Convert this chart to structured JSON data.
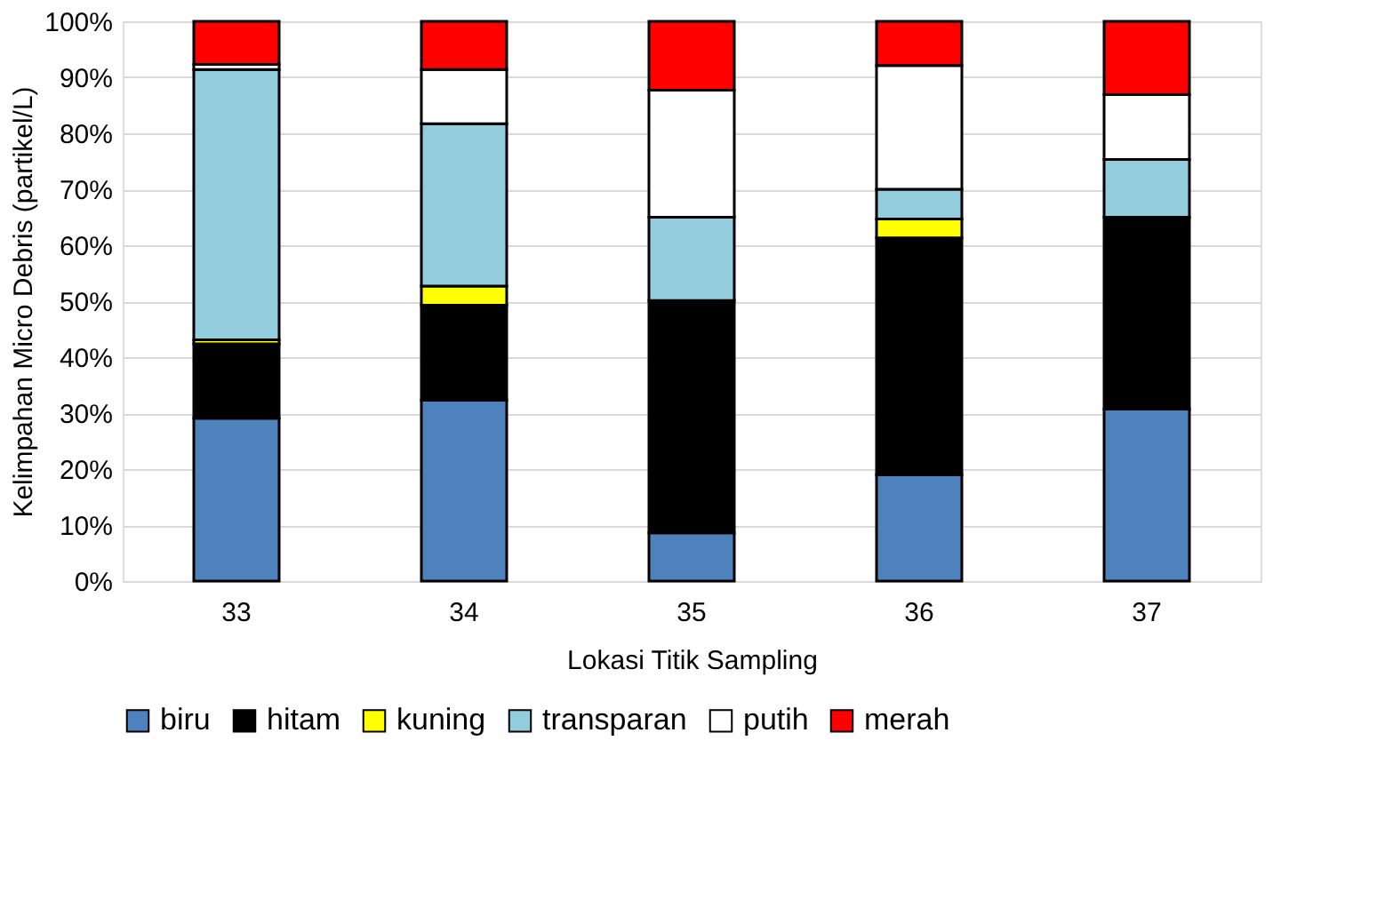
{
  "chart_data": {
    "type": "bar",
    "stacked": true,
    "xlabel": "Lokasi Titik Sampling",
    "ylabel": "Kelimpahan Micro Debris (partikel/L)",
    "categories": [
      "33",
      "34",
      "35",
      "36",
      "37"
    ],
    "series": [
      {
        "name": "biru",
        "color": "#4f81bd",
        "values": [
          29.1,
          32.3,
          8.6,
          19.0,
          30.7
        ]
      },
      {
        "name": "hitam",
        "color": "#000000",
        "values": [
          13.3,
          17.0,
          41.5,
          42.3,
          34.3
        ]
      },
      {
        "name": "kuning",
        "color": "#ffff00",
        "values": [
          0.7,
          3.4,
          0,
          3.4,
          0
        ]
      },
      {
        "name": "transparan",
        "color": "#93cddd",
        "values": [
          48.3,
          29.0,
          14.9,
          5.3,
          10.3
        ]
      },
      {
        "name": "putih",
        "color": "#ffffff",
        "values": [
          0.9,
          9.7,
          22.7,
          22.1,
          11.6
        ]
      },
      {
        "name": "merah",
        "color": "#ff0000",
        "values": [
          7.7,
          8.6,
          12.3,
          7.9,
          13.1
        ]
      }
    ],
    "ylim": [
      0,
      100
    ],
    "yticks": [
      {
        "value": 0,
        "label": "0%"
      },
      {
        "value": 10,
        "label": "10%"
      },
      {
        "value": 20,
        "label": "20%"
      },
      {
        "value": 30,
        "label": "30%"
      },
      {
        "value": 40,
        "label": "40%"
      },
      {
        "value": 50,
        "label": "50%"
      },
      {
        "value": 60,
        "label": "60%"
      },
      {
        "value": 70,
        "label": "70%"
      },
      {
        "value": 80,
        "label": "80%"
      },
      {
        "value": 90,
        "label": "90%"
      },
      {
        "value": 100,
        "label": "100%"
      }
    ],
    "grid": "y",
    "legend": "bottom"
  }
}
